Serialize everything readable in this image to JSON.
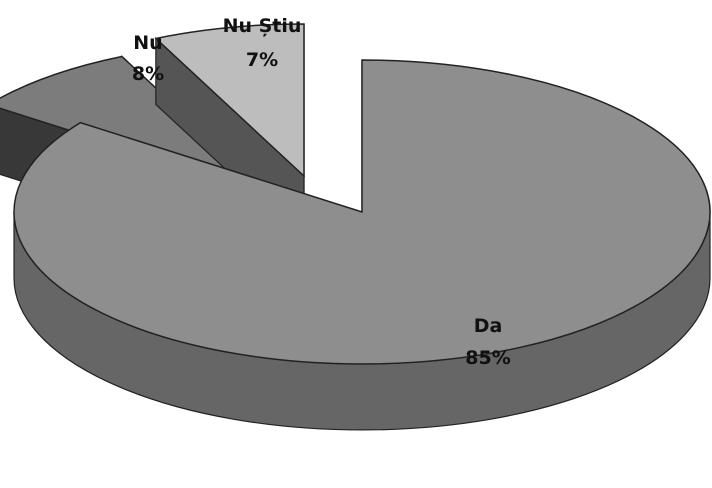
{
  "chart_data": {
    "type": "pie",
    "style": "3d-exploded",
    "title": "",
    "legend": "none",
    "slices": [
      {
        "label": "Da",
        "value": 85,
        "value_label": "85%",
        "color": "#8e8e8e",
        "exploded": false
      },
      {
        "label": "Nu",
        "value": 8,
        "value_label": "8%",
        "color": "#7c7c7c",
        "exploded": true
      },
      {
        "label": "Nu Știu",
        "value": 7,
        "value_label": "7%",
        "color": "#bdbdbd",
        "exploded": true
      }
    ]
  }
}
